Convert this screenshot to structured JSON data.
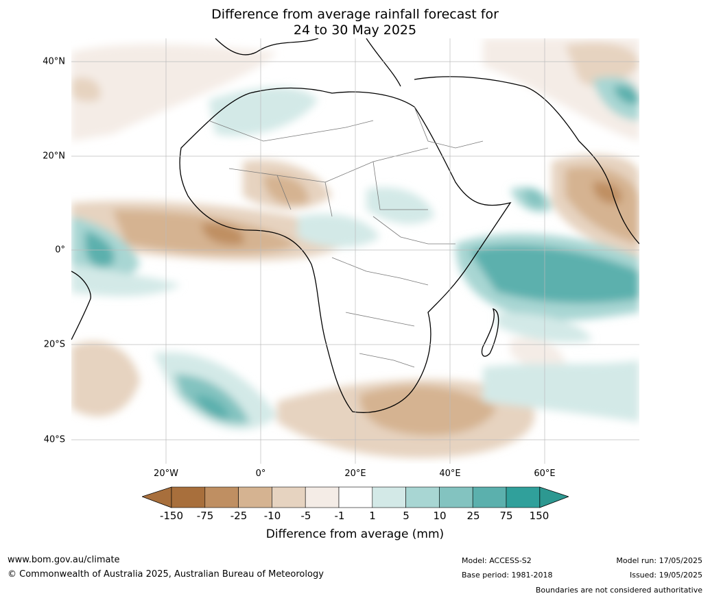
{
  "title": {
    "line1": "Difference from average rainfall forecast for",
    "line2": "24 to 30 May 2025"
  },
  "map": {
    "lat_labels": [
      "40°N",
      "20°N",
      "0°",
      "20°S",
      "40°S"
    ],
    "lon_labels": [
      "20°W",
      "0°",
      "20°E",
      "40°E",
      "60°E"
    ]
  },
  "legend": {
    "title": "Difference from average (mm)",
    "ticks": [
      "-150",
      "-75",
      "-25",
      "-10",
      "-5",
      "-1",
      "1",
      "5",
      "10",
      "25",
      "75",
      "150"
    ],
    "colors": [
      "#a86f3c",
      "#bf8f62",
      "#d5b391",
      "#e6d3c0",
      "#f4ece6",
      "#ffffff",
      "#d3e9e7",
      "#a8d6d3",
      "#83c3c0",
      "#5bb0ad",
      "#30a09b"
    ],
    "low_extend_color": "#a86f3c",
    "high_extend_color": "#2d9891"
  },
  "footer": {
    "website": "www.bom.gov.au/climate",
    "copyright": "© Commonwealth of Australia 2025, Australian Bureau of Meteorology",
    "model": "Model: ACCESS-S2",
    "base_period": "Base period: 1981-2018",
    "model_run": "Model run: 17/05/2025",
    "issued": "Issued: 19/05/2025",
    "disclaimer": "Boundaries are not considered authoritative"
  }
}
